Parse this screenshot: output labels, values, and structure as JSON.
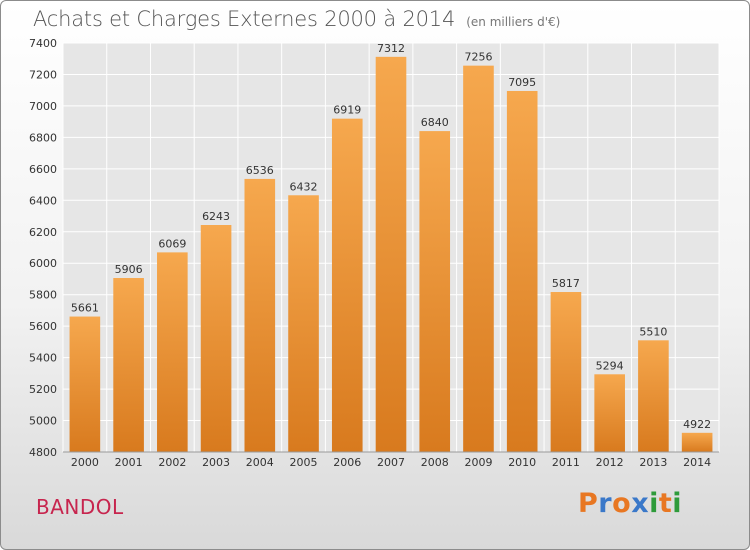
{
  "title": "Achats et Charges Externes 2000 à 2014",
  "subtitle": "(en milliers d'€)",
  "place": "BANDOL",
  "logo": {
    "text": "Proxiti",
    "colors": [
      "#e87722",
      "#3a78c9",
      "#e87722",
      "#3a78c9",
      "#2e9b3a",
      "#e87722",
      "#2e9b3a"
    ]
  },
  "colors": {
    "bar_top": "#f6a84e",
    "bar_bottom": "#d87a1e",
    "grid": "#ffffff",
    "plot_bg": "#e6e6e6",
    "place": "#c7254e"
  },
  "chart_data": {
    "type": "bar",
    "title": "Achats et Charges Externes 2000 à 2014",
    "categories": [
      "2000",
      "2001",
      "2002",
      "2003",
      "2004",
      "2005",
      "2006",
      "2007",
      "2008",
      "2009",
      "2010",
      "2011",
      "2012",
      "2013",
      "2014"
    ],
    "values": [
      5661,
      5906,
      6069,
      6243,
      6536,
      6432,
      6919,
      7312,
      6840,
      7256,
      7095,
      5817,
      5294,
      5510,
      4922
    ],
    "ylim": [
      4800,
      7400
    ],
    "yticks": [
      4800,
      5000,
      5200,
      5400,
      5600,
      5800,
      6000,
      6200,
      6400,
      6600,
      6800,
      7000,
      7200,
      7400
    ],
    "grid": true,
    "xlabel": "",
    "ylabel": ""
  }
}
